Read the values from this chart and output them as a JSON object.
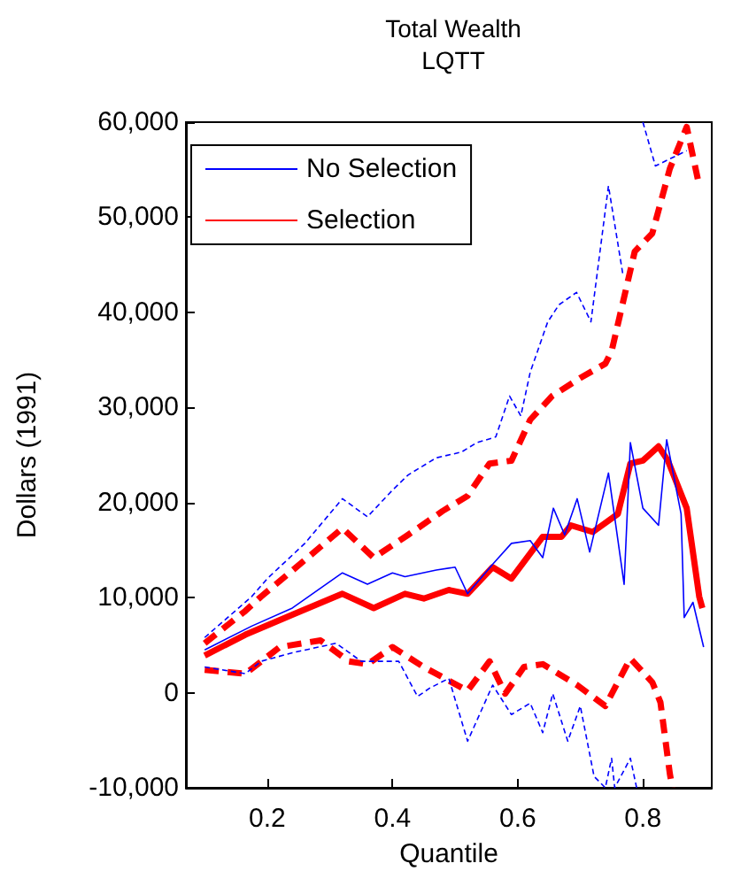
{
  "chart_data": {
    "type": "line",
    "title": "Total Wealth",
    "subtitle": "LQTT",
    "xlabel": "Quantile",
    "ylabel": "Dollars (1991)",
    "xlim": [
      0.07,
      0.91
    ],
    "xticks": [
      0.2,
      0.4,
      0.6,
      0.8
    ],
    "ylim": [
      -10000,
      60000
    ],
    "yticks": [
      {
        "value": -10000,
        "label": "-10,000"
      },
      {
        "value": 0,
        "label": "0"
      },
      {
        "value": 10000,
        "label": "10,000"
      },
      {
        "value": 20000,
        "label": "20,000"
      },
      {
        "value": 30000,
        "label": "30,000"
      },
      {
        "value": 40000,
        "label": "40,000"
      },
      {
        "value": 50000,
        "label": "50,000"
      },
      {
        "value": 60000,
        "label": "60,000"
      }
    ],
    "grid": false,
    "legend": "top left",
    "marker": "none",
    "line_style": "solid",
    "series": [
      {
        "color": "#0000ff",
        "line_style": "dashed",
        "x": [
          0.1,
          0.175,
          0.2,
          0.26,
          0.32,
          0.36,
          0.4,
          0.425,
          0.47,
          0.51,
          0.535,
          0.565,
          0.587,
          0.605,
          0.62,
          0.648,
          0.666,
          0.694,
          0.717,
          0.745,
          0.768,
          0.78,
          0.8,
          0.82,
          0.87
        ],
        "values": [
          5800,
          10100,
          12000,
          15700,
          20400,
          18500,
          21300,
          22900,
          24700,
          25300,
          26300,
          26900,
          31200,
          29100,
          33700,
          39000,
          40800,
          42100,
          39000,
          53300,
          44000,
          null,
          60000,
          55400,
          57000
        ]
      },
      {
        "color": "#0000ff",
        "line_style": "dashed",
        "x": [
          0.1,
          0.165,
          0.19,
          0.24,
          0.31,
          0.35,
          0.41,
          0.44,
          0.46,
          0.49,
          0.52,
          0.56,
          0.59,
          0.62,
          0.64,
          0.656,
          0.68,
          0.7,
          0.722,
          0.74,
          0.75,
          0.755,
          0.78,
          0.79
        ],
        "values": [
          2700,
          2000,
          3300,
          4200,
          5200,
          3300,
          3300,
          -400,
          500,
          1500,
          -5100,
          800,
          -2300,
          -1100,
          -4200,
          -100,
          -5100,
          -1400,
          -8800,
          -10000,
          -6900,
          -10000,
          -6900,
          -10000
        ]
      },
      {
        "name": "No Selection",
        "color": "#0000ff",
        "x": [
          0.1,
          0.175,
          0.24,
          0.32,
          0.36,
          0.4,
          0.42,
          0.47,
          0.5,
          0.52,
          0.56,
          0.59,
          0.62,
          0.64,
          0.657,
          0.675,
          0.695,
          0.715,
          0.745,
          0.77,
          0.78,
          0.8,
          0.825,
          0.838,
          0.861,
          0.866,
          0.88,
          0.897
        ],
        "values": [
          4500,
          7000,
          8900,
          12600,
          11400,
          12600,
          12200,
          12900,
          13200,
          10400,
          13500,
          15700,
          16000,
          14200,
          19400,
          16600,
          20400,
          14800,
          23100,
          11400,
          26300,
          19400,
          17600,
          26600,
          18800,
          7900,
          9500,
          4800
        ]
      },
      {
        "color": "#ff0000",
        "line_style": "dashed",
        "x": [
          0.1,
          0.165,
          0.19,
          0.27,
          0.32,
          0.37,
          0.425,
          0.48,
          0.52,
          0.555,
          0.59,
          0.62,
          0.655,
          0.7,
          0.74,
          0.75,
          0.787,
          0.815,
          0.843,
          0.87,
          0.89
        ],
        "values": [
          5200,
          8600,
          10100,
          14500,
          17300,
          14200,
          16600,
          19100,
          20700,
          24100,
          24400,
          28700,
          31200,
          33100,
          34600,
          35900,
          46400,
          48300,
          55100,
          59500,
          53300
        ]
      },
      {
        "color": "#ff0000",
        "line_style": "dashed",
        "x": [
          0.1,
          0.165,
          0.22,
          0.285,
          0.33,
          0.36,
          0.4,
          0.45,
          0.52,
          0.555,
          0.58,
          0.61,
          0.64,
          0.695,
          0.74,
          0.78,
          0.815,
          0.828,
          0.843,
          0.847
        ],
        "values": [
          2400,
          2000,
          4800,
          5500,
          3300,
          3000,
          4800,
          2700,
          200,
          3300,
          -100,
          2700,
          3000,
          800,
          -1400,
          3600,
          1100,
          -1000,
          -8500,
          -10000
        ]
      },
      {
        "name": "Selection",
        "color": "#ff0000",
        "x": [
          0.1,
          0.165,
          0.24,
          0.32,
          0.37,
          0.42,
          0.45,
          0.49,
          0.52,
          0.56,
          0.59,
          0.64,
          0.67,
          0.685,
          0.72,
          0.76,
          0.78,
          0.8,
          0.825,
          0.84,
          0.87,
          0.89,
          0.895
        ],
        "values": [
          3900,
          6100,
          8200,
          10400,
          8900,
          10400,
          9900,
          10800,
          10400,
          13200,
          12000,
          16400,
          16400,
          17600,
          16900,
          18800,
          24100,
          24400,
          25900,
          24400,
          19400,
          10100,
          8900
        ]
      }
    ]
  }
}
